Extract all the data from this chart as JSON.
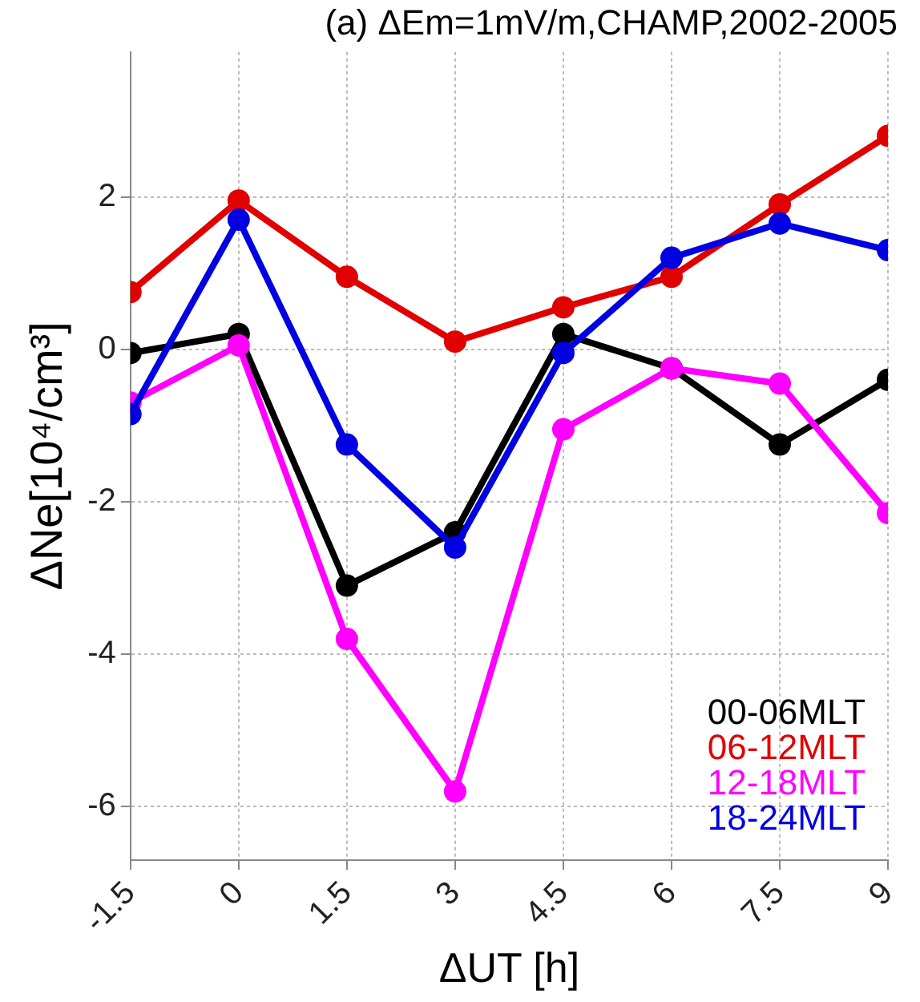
{
  "chart_data": {
    "type": "line",
    "title": "(a) ΔEm=1mV/m,CHAMP,2002-2005",
    "xlabel": "ΔUT [h]",
    "ylabel": "ΔNe[10⁴/cm³]",
    "x": [
      -1.5,
      0,
      1.5,
      3,
      4.5,
      6,
      7.5,
      9
    ],
    "series": [
      {
        "name": "00-06MLT",
        "color": "#000000",
        "values": [
          -0.05,
          0.2,
          -3.1,
          -2.4,
          0.2,
          -0.25,
          -1.25,
          -0.4
        ]
      },
      {
        "name": "06-12MLT",
        "color": "#e00000",
        "values": [
          0.75,
          1.95,
          0.95,
          0.1,
          0.55,
          0.95,
          1.9,
          2.8
        ]
      },
      {
        "name": "12-18MLT",
        "color": "#ff00ff",
        "values": [
          -0.7,
          0.05,
          -3.8,
          -5.8,
          -1.05,
          -0.25,
          -0.45,
          -2.15
        ]
      },
      {
        "name": "18-24MLT",
        "color": "#0000e0",
        "values": [
          -0.85,
          1.7,
          -1.25,
          -2.6,
          -0.05,
          1.2,
          1.65,
          1.3
        ]
      }
    ],
    "xlim": [
      -1.5,
      9
    ],
    "xticks": [
      -1.5,
      0,
      1.5,
      3,
      4.5,
      6,
      7.5,
      9
    ],
    "ylim": [
      -6.7,
      3.9
    ],
    "yticks": [
      -6,
      -4,
      -2,
      0,
      2
    ],
    "grid": true,
    "legend": "bottom right",
    "marker": "circle",
    "line_style": "solid"
  }
}
